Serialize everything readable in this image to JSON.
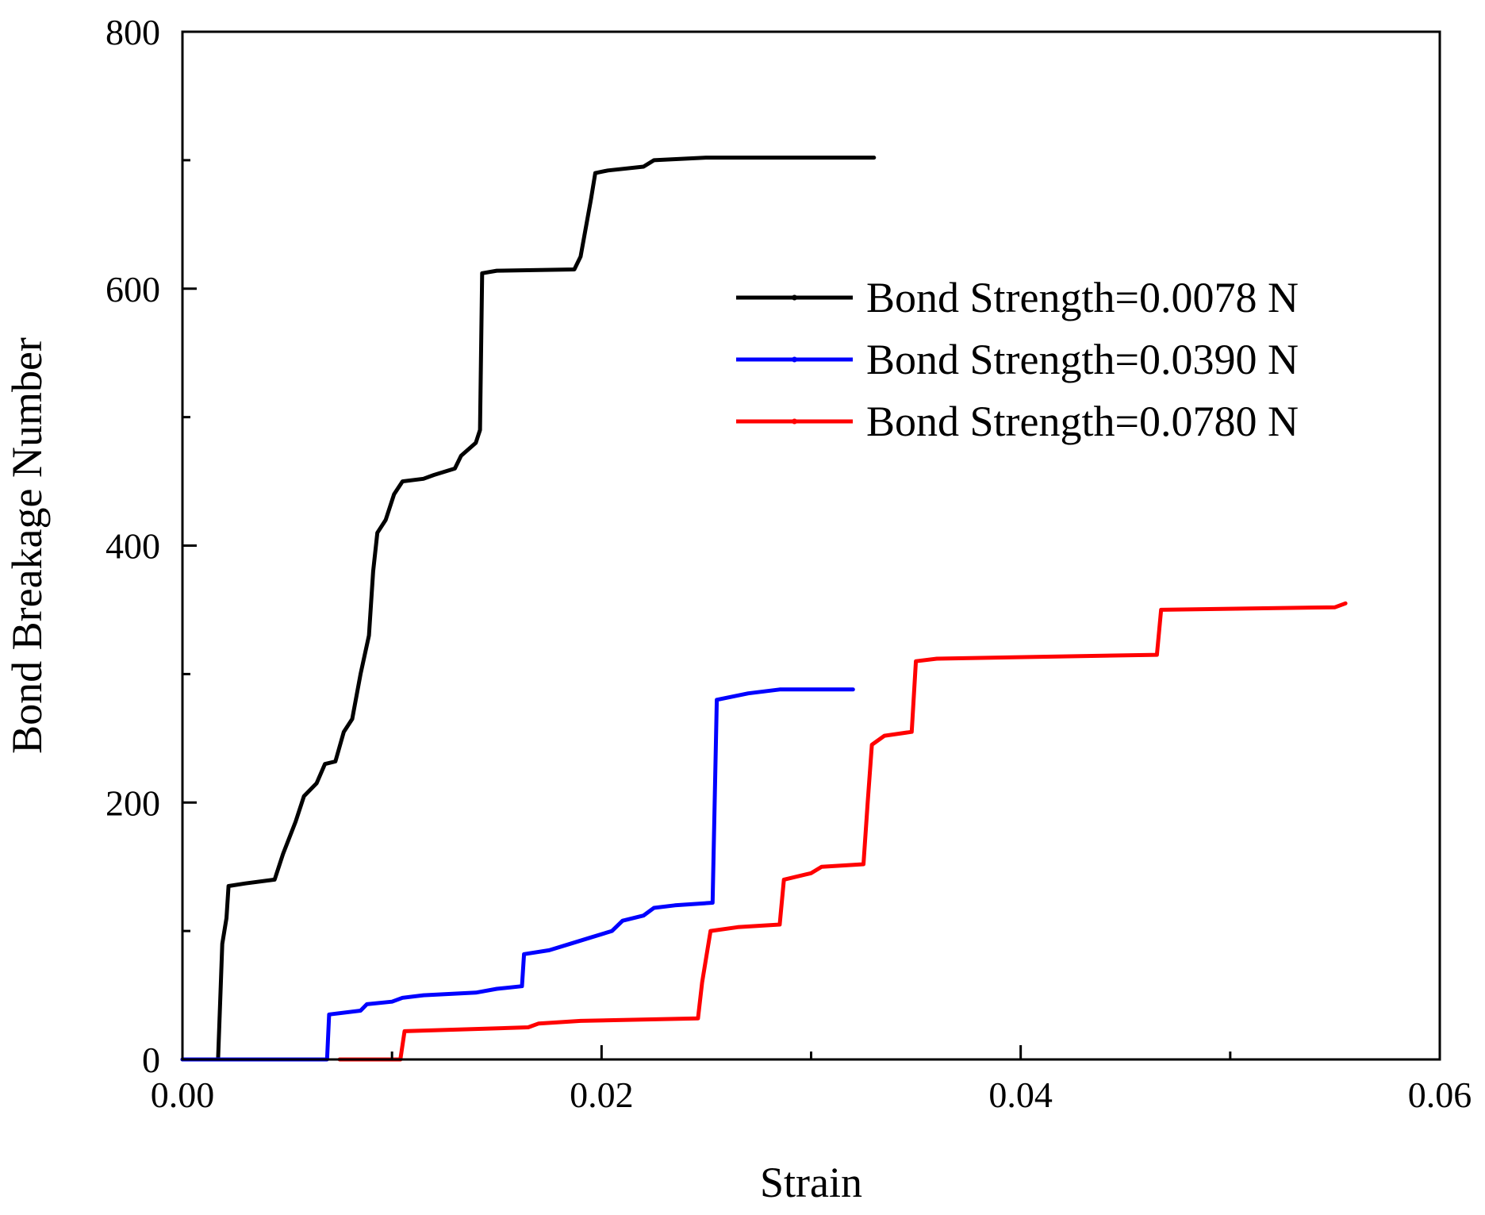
{
  "chart_data": {
    "type": "line",
    "title": "",
    "xlabel": "Strain",
    "ylabel": "Bond Breakage Number",
    "xlim": [
      0,
      0.06
    ],
    "ylim": [
      0,
      800
    ],
    "x_ticks": [
      "0.00",
      "0.02",
      "0.04",
      "0.06"
    ],
    "y_ticks": [
      "0",
      "200",
      "400",
      "600",
      "800"
    ],
    "grid": false,
    "legend_position": "upper-right",
    "series": [
      {
        "name": "Bond Strength=0.0078 N",
        "color": "#000000",
        "points": [
          [
            0,
            0
          ],
          [
            0.0017,
            0
          ],
          [
            0.0019,
            90
          ],
          [
            0.0021,
            110
          ],
          [
            0.0022,
            135
          ],
          [
            0.003,
            137
          ],
          [
            0.0044,
            140
          ],
          [
            0.0048,
            160
          ],
          [
            0.0054,
            185
          ],
          [
            0.0058,
            205
          ],
          [
            0.0064,
            215
          ],
          [
            0.0068,
            230
          ],
          [
            0.0073,
            232
          ],
          [
            0.0077,
            255
          ],
          [
            0.0081,
            265
          ],
          [
            0.0085,
            300
          ],
          [
            0.0089,
            330
          ],
          [
            0.0091,
            380
          ],
          [
            0.0093,
            410
          ],
          [
            0.0097,
            420
          ],
          [
            0.0101,
            440
          ],
          [
            0.0105,
            450
          ],
          [
            0.0115,
            452
          ],
          [
            0.012,
            455
          ],
          [
            0.013,
            460
          ],
          [
            0.0133,
            470
          ],
          [
            0.014,
            480
          ],
          [
            0.0142,
            490
          ],
          [
            0.0143,
            612
          ],
          [
            0.015,
            614
          ],
          [
            0.0187,
            615
          ],
          [
            0.019,
            625
          ],
          [
            0.0195,
            670
          ],
          [
            0.0197,
            690
          ],
          [
            0.0203,
            692
          ],
          [
            0.022,
            695
          ],
          [
            0.0225,
            700
          ],
          [
            0.025,
            702
          ],
          [
            0.033,
            702
          ]
        ]
      },
      {
        "name": "Bond Strength=0.0390 N",
        "color": "#0000ff",
        "points": [
          [
            0,
            0
          ],
          [
            0.0069,
            0
          ],
          [
            0.007,
            35
          ],
          [
            0.0085,
            38
          ],
          [
            0.0088,
            43
          ],
          [
            0.01,
            45
          ],
          [
            0.0105,
            48
          ],
          [
            0.0115,
            50
          ],
          [
            0.014,
            52
          ],
          [
            0.015,
            55
          ],
          [
            0.0162,
            57
          ],
          [
            0.0163,
            82
          ],
          [
            0.0175,
            85
          ],
          [
            0.0185,
            90
          ],
          [
            0.0195,
            95
          ],
          [
            0.0205,
            100
          ],
          [
            0.021,
            108
          ],
          [
            0.022,
            112
          ],
          [
            0.0225,
            118
          ],
          [
            0.0235,
            120
          ],
          [
            0.0253,
            122
          ],
          [
            0.0255,
            280
          ],
          [
            0.027,
            285
          ],
          [
            0.0285,
            288
          ],
          [
            0.032,
            288
          ]
        ]
      },
      {
        "name": "Bond Strength=0.0780 N",
        "color": "#ff0000",
        "points": [
          [
            0.0075,
            0
          ],
          [
            0.0104,
            0
          ],
          [
            0.0106,
            22
          ],
          [
            0.0165,
            25
          ],
          [
            0.017,
            28
          ],
          [
            0.019,
            30
          ],
          [
            0.0246,
            32
          ],
          [
            0.0248,
            60
          ],
          [
            0.025,
            80
          ],
          [
            0.0252,
            100
          ],
          [
            0.0265,
            103
          ],
          [
            0.0285,
            105
          ],
          [
            0.0287,
            140
          ],
          [
            0.03,
            145
          ],
          [
            0.0305,
            150
          ],
          [
            0.0325,
            152
          ],
          [
            0.0327,
            200
          ],
          [
            0.0329,
            245
          ],
          [
            0.0335,
            252
          ],
          [
            0.0348,
            255
          ],
          [
            0.035,
            310
          ],
          [
            0.036,
            312
          ],
          [
            0.0465,
            315
          ],
          [
            0.0467,
            350
          ],
          [
            0.055,
            352
          ],
          [
            0.0555,
            355
          ]
        ]
      }
    ]
  }
}
